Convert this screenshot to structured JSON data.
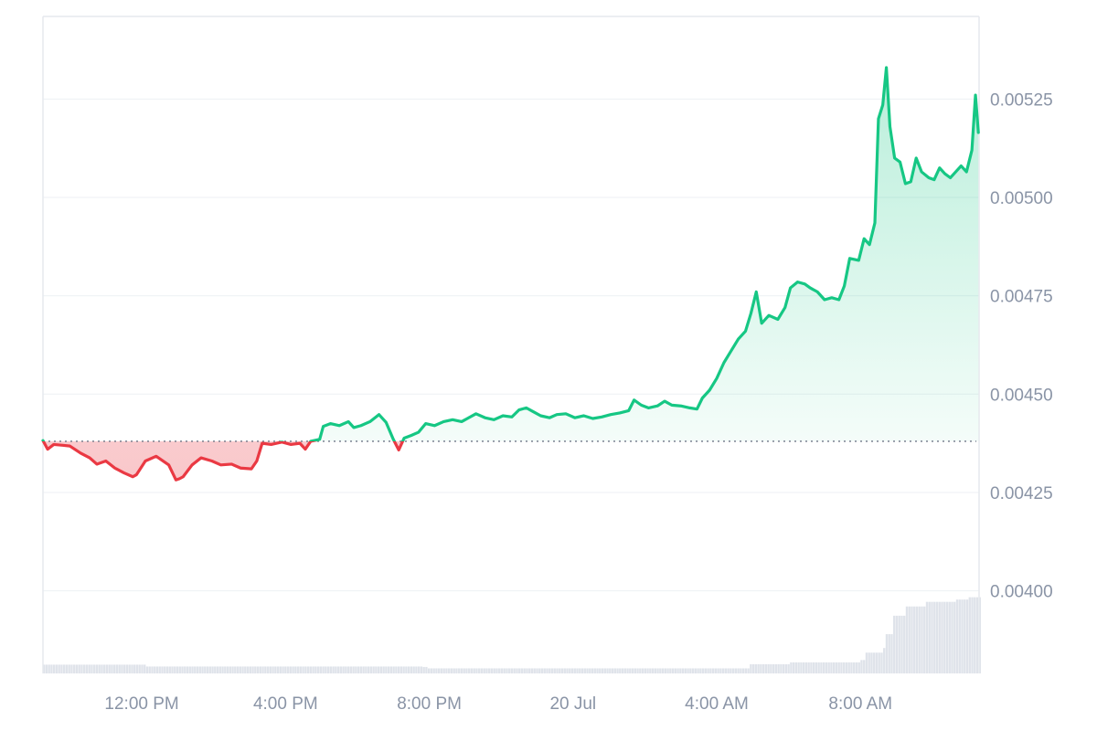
{
  "chart_data": {
    "type": "area",
    "title": "",
    "xlabel": "",
    "ylabel": "",
    "baseline": 0.00438,
    "ylim": [
      0.00379,
      0.00546
    ],
    "x_ticks": [
      {
        "label": "12:00 PM",
        "t": 2
      },
      {
        "label": "4:00 PM",
        "t": 6
      },
      {
        "label": "8:00 PM",
        "t": 10
      },
      {
        "label": "20 Jul",
        "t": 14
      },
      {
        "label": "4:00 AM",
        "t": 18
      },
      {
        "label": "8:00 AM",
        "t": 22
      }
    ],
    "y_ticks": [
      {
        "label": "0.00525",
        "value": 0.00525
      },
      {
        "label": "0.00500",
        "value": 0.005
      },
      {
        "label": "0.00475",
        "value": 0.00475
      },
      {
        "label": "0.00450",
        "value": 0.0045
      },
      {
        "label": "0.00425",
        "value": 0.00425
      },
      {
        "label": "0.00400",
        "value": 0.004
      }
    ],
    "x_range": [
      -0.75,
      24.25
    ],
    "series": [
      {
        "points": [
          [
            -0.75,
            0.004382
          ],
          [
            -0.62,
            0.00436
          ],
          [
            -0.45,
            0.004372
          ],
          [
            -0.2,
            0.00437
          ],
          [
            0.0,
            0.004368
          ],
          [
            0.3,
            0.00435
          ],
          [
            0.55,
            0.004338
          ],
          [
            0.75,
            0.004322
          ],
          [
            1.0,
            0.00433
          ],
          [
            1.25,
            0.004312
          ],
          [
            1.5,
            0.0043
          ],
          [
            1.75,
            0.00429
          ],
          [
            1.85,
            0.004295
          ],
          [
            2.1,
            0.00433
          ],
          [
            2.4,
            0.004342
          ],
          [
            2.75,
            0.00432
          ],
          [
            2.95,
            0.004282
          ],
          [
            3.05,
            0.004285
          ],
          [
            3.15,
            0.00429
          ],
          [
            3.4,
            0.00432
          ],
          [
            3.65,
            0.004338
          ],
          [
            3.95,
            0.00433
          ],
          [
            4.2,
            0.00432
          ],
          [
            4.5,
            0.004322
          ],
          [
            4.75,
            0.004312
          ],
          [
            5.05,
            0.00431
          ],
          [
            5.2,
            0.00433
          ],
          [
            5.35,
            0.004375
          ],
          [
            5.6,
            0.004372
          ],
          [
            5.9,
            0.004378
          ],
          [
            6.15,
            0.004372
          ],
          [
            6.4,
            0.004375
          ],
          [
            6.55,
            0.00436
          ],
          [
            6.7,
            0.00438
          ],
          [
            6.95,
            0.004385
          ],
          [
            7.05,
            0.004418
          ],
          [
            7.25,
            0.004425
          ],
          [
            7.5,
            0.00442
          ],
          [
            7.75,
            0.00443
          ],
          [
            7.9,
            0.004415
          ],
          [
            8.1,
            0.00442
          ],
          [
            8.35,
            0.00443
          ],
          [
            8.6,
            0.004448
          ],
          [
            8.8,
            0.004428
          ],
          [
            9.0,
            0.004385
          ],
          [
            9.15,
            0.004358
          ],
          [
            9.3,
            0.004388
          ],
          [
            9.5,
            0.004395
          ],
          [
            9.7,
            0.004403
          ],
          [
            9.9,
            0.004425
          ],
          [
            10.15,
            0.00442
          ],
          [
            10.4,
            0.00443
          ],
          [
            10.65,
            0.004435
          ],
          [
            10.9,
            0.00443
          ],
          [
            11.1,
            0.00444
          ],
          [
            11.3,
            0.00445
          ],
          [
            11.55,
            0.00444
          ],
          [
            11.8,
            0.004435
          ],
          [
            12.05,
            0.004445
          ],
          [
            12.3,
            0.004442
          ],
          [
            12.5,
            0.00446
          ],
          [
            12.7,
            0.004465
          ],
          [
            12.9,
            0.004455
          ],
          [
            13.1,
            0.004445
          ],
          [
            13.35,
            0.00444
          ],
          [
            13.55,
            0.004448
          ],
          [
            13.8,
            0.00445
          ],
          [
            14.05,
            0.00444
          ],
          [
            14.3,
            0.004445
          ],
          [
            14.55,
            0.004438
          ],
          [
            14.8,
            0.004442
          ],
          [
            15.05,
            0.004448
          ],
          [
            15.3,
            0.004452
          ],
          [
            15.55,
            0.004458
          ],
          [
            15.7,
            0.004485
          ],
          [
            15.9,
            0.004472
          ],
          [
            16.1,
            0.004465
          ],
          [
            16.35,
            0.00447
          ],
          [
            16.55,
            0.004482
          ],
          [
            16.75,
            0.004472
          ],
          [
            17.0,
            0.00447
          ],
          [
            17.25,
            0.004465
          ],
          [
            17.45,
            0.004462
          ],
          [
            17.6,
            0.00449
          ],
          [
            17.8,
            0.00451
          ],
          [
            18.0,
            0.00454
          ],
          [
            18.2,
            0.00458
          ],
          [
            18.4,
            0.00461
          ],
          [
            18.6,
            0.00464
          ],
          [
            18.8,
            0.00466
          ],
          [
            18.95,
            0.004705
          ],
          [
            19.1,
            0.00476
          ],
          [
            19.25,
            0.00468
          ],
          [
            19.45,
            0.0047
          ],
          [
            19.7,
            0.00469
          ],
          [
            19.9,
            0.00472
          ],
          [
            20.05,
            0.00477
          ],
          [
            20.25,
            0.004785
          ],
          [
            20.45,
            0.00478
          ],
          [
            20.6,
            0.00477
          ],
          [
            20.8,
            0.00476
          ],
          [
            21.0,
            0.00474
          ],
          [
            21.2,
            0.004745
          ],
          [
            21.4,
            0.00474
          ],
          [
            21.55,
            0.004775
          ],
          [
            21.7,
            0.004845
          ],
          [
            21.95,
            0.00484
          ],
          [
            22.1,
            0.004895
          ],
          [
            22.25,
            0.00488
          ],
          [
            22.4,
            0.004935
          ],
          [
            22.5,
            0.0052
          ],
          [
            22.62,
            0.005235
          ],
          [
            22.72,
            0.00533
          ],
          [
            22.82,
            0.00518
          ],
          [
            22.95,
            0.0051
          ],
          [
            23.1,
            0.00509
          ],
          [
            23.25,
            0.005035
          ],
          [
            23.4,
            0.00504
          ],
          [
            23.55,
            0.0051
          ],
          [
            23.7,
            0.005065
          ],
          [
            23.9,
            0.00505
          ],
          [
            24.05,
            0.005045
          ],
          [
            24.2,
            0.005075
          ],
          [
            24.35,
            0.00506
          ],
          [
            24.5,
            0.00505
          ],
          [
            24.65,
            0.005065
          ],
          [
            24.8,
            0.00508
          ],
          [
            24.95,
            0.005065
          ],
          [
            25.1,
            0.00512
          ],
          [
            25.2,
            0.00526
          ],
          [
            25.28,
            0.005165
          ]
        ]
      }
    ],
    "volume": [
      [
        -0.75,
        0.038
      ],
      [
        2.0,
        0.038
      ],
      [
        2.1,
        0.03
      ],
      [
        9.8,
        0.028
      ],
      [
        9.9,
        0.022
      ],
      [
        18.8,
        0.022
      ],
      [
        18.9,
        0.04
      ],
      [
        20.0,
        0.048
      ],
      [
        22.0,
        0.058
      ],
      [
        22.1,
        0.09
      ],
      [
        22.6,
        0.11
      ],
      [
        22.7,
        0.17
      ],
      [
        22.9,
        0.25
      ],
      [
        23.2,
        0.29
      ],
      [
        23.8,
        0.31
      ],
      [
        24.6,
        0.32
      ],
      [
        25.0,
        0.33
      ],
      [
        25.3,
        0.37
      ]
    ],
    "colors": {
      "up": "#16c784",
      "down": "#ea3943",
      "up_fill": "#16c784",
      "down_fill": "#ea3943",
      "grid": "#eff2f5",
      "axis_text": "#8a94a6",
      "baseline": "#6e7687",
      "volume": "#dfe3ea"
    }
  }
}
